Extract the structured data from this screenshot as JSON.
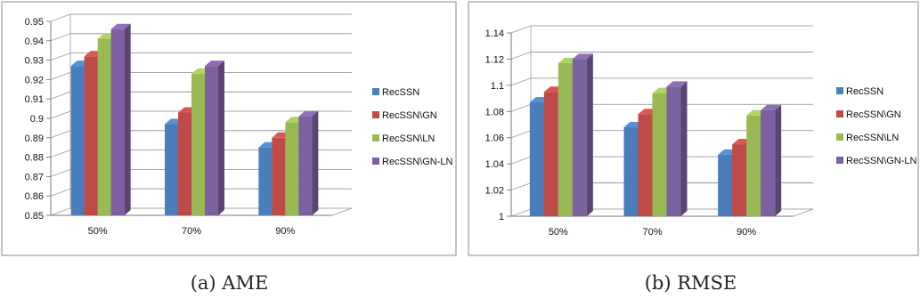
{
  "colors": {
    "RecSSN": "#4A7EBB",
    "RecSSN\\GN": "#BE4B48",
    "RecSSN\\LN": "#98B954",
    "RecSSN\\GN-LN": "#7D60A0"
  },
  "chart_data": [
    {
      "type": "bar",
      "caption": "(a) AME",
      "categories": [
        "50%",
        "70%",
        "90%"
      ],
      "ylim": [
        0.85,
        0.95
      ],
      "yticks": [
        "0.85",
        "0.86",
        "0.87",
        "0.88",
        "0.89",
        "0.9",
        "0.91",
        "0.92",
        "0.93",
        "0.94",
        "0.95"
      ],
      "grid": true,
      "legend_position": "right",
      "series": [
        {
          "name": "RecSSN",
          "values": [
            0.927,
            0.897,
            0.885
          ]
        },
        {
          "name": "RecSSN\\GN",
          "values": [
            0.932,
            0.903,
            0.89
          ]
        },
        {
          "name": "RecSSN\\LN",
          "values": [
            0.941,
            0.923,
            0.898
          ]
        },
        {
          "name": "RecSSN\\GN-LN",
          "values": [
            0.946,
            0.927,
            0.901
          ]
        }
      ]
    },
    {
      "type": "bar",
      "caption": "(b) RMSE",
      "categories": [
        "50%",
        "70%",
        "90%"
      ],
      "ylim": [
        1.0,
        1.14
      ],
      "yticks": [
        "1",
        "1.02",
        "1.04",
        "1.06",
        "1.08",
        "1.1",
        "1.12",
        "1.14"
      ],
      "grid": true,
      "legend_position": "right",
      "series": [
        {
          "name": "RecSSN",
          "values": [
            1.087,
            1.068,
            1.047
          ]
        },
        {
          "name": "RecSSN\\GN",
          "values": [
            1.095,
            1.078,
            1.055
          ]
        },
        {
          "name": "RecSSN\\LN",
          "values": [
            1.117,
            1.094,
            1.077
          ]
        },
        {
          "name": "RecSSN\\GN-LN",
          "values": [
            1.12,
            1.099,
            1.081
          ]
        }
      ]
    }
  ]
}
